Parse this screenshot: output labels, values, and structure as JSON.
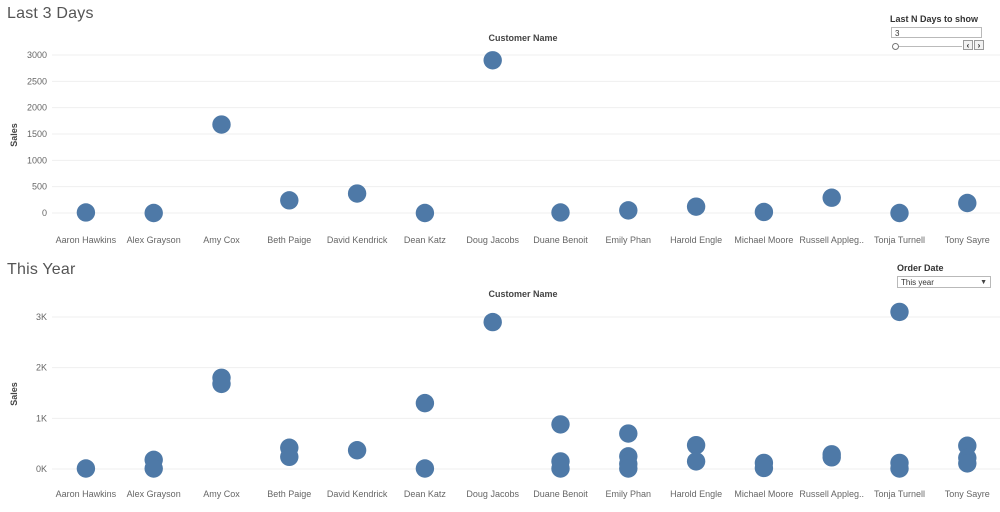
{
  "colors": {
    "mark": "#4e79a7",
    "gridline": "#efefef",
    "axis_text": "#666666"
  },
  "sheet_top": {
    "title": "Last 3 Days",
    "column_header": "Customer Name",
    "filter": {
      "title": "Last N Days to show",
      "value": "3",
      "prev_icon": "chevron-left-icon",
      "next_icon": "chevron-right-icon"
    }
  },
  "sheet_bottom": {
    "title": "This Year",
    "column_header": "Customer Name",
    "filter": {
      "title": "Order Date",
      "selected": "This year",
      "icon": "dropdown-arrow-icon"
    }
  },
  "chart_data": [
    {
      "type": "scatter",
      "title": "Last 3 Days",
      "xlabel": "Customer Name",
      "ylabel": "Sales",
      "ylim": [
        0,
        3000
      ],
      "y_ticks": [
        "3000",
        "2500",
        "2000",
        "1500",
        "1000",
        "500",
        "0"
      ],
      "y_tick_values": [
        3000,
        2500,
        2000,
        1500,
        1000,
        500,
        0
      ],
      "grid": true,
      "categories": [
        "Aaron Hawkins",
        "Alex Grayson",
        "Amy Cox",
        "Beth Paige",
        "David Kendrick",
        "Dean Katz",
        "Doug Jacobs",
        "Duane Benoit",
        "Emily Phan",
        "Harold Engle",
        "Michael Moore",
        "Russell Appleg..",
        "Tonja Turnell",
        "Tony Sayre"
      ],
      "points": [
        {
          "x": "Aaron Hawkins",
          "y": 10
        },
        {
          "x": "Alex Grayson",
          "y": 0
        },
        {
          "x": "Amy Cox",
          "y": 1680
        },
        {
          "x": "Beth Paige",
          "y": 240
        },
        {
          "x": "David Kendrick",
          "y": 370
        },
        {
          "x": "Dean Katz",
          "y": 0
        },
        {
          "x": "Doug Jacobs",
          "y": 2900
        },
        {
          "x": "Duane Benoit",
          "y": 10
        },
        {
          "x": "Emily Phan",
          "y": 50
        },
        {
          "x": "Harold Engle",
          "y": 120
        },
        {
          "x": "Michael Moore",
          "y": 20
        },
        {
          "x": "Russell Appleg..",
          "y": 290
        },
        {
          "x": "Tonja Turnell",
          "y": 0
        },
        {
          "x": "Tony Sayre",
          "y": 190
        }
      ]
    },
    {
      "type": "scatter",
      "title": "This Year",
      "xlabel": "Customer Name",
      "ylabel": "Sales",
      "ylim": [
        -300,
        3300
      ],
      "y_ticks": [
        "3K",
        "2K",
        "1K",
        "0K"
      ],
      "y_tick_values": [
        3000,
        2000,
        1000,
        0
      ],
      "grid": true,
      "categories": [
        "Aaron Hawkins",
        "Alex Grayson",
        "Amy Cox",
        "Beth Paige",
        "David Kendrick",
        "Dean Katz",
        "Doug Jacobs",
        "Duane Benoit",
        "Emily Phan",
        "Harold Engle",
        "Michael Moore",
        "Russell Appleg..",
        "Tonja Turnell",
        "Tony Sayre"
      ],
      "points": [
        {
          "x": "Aaron Hawkins",
          "y": 10
        },
        {
          "x": "Alex Grayson",
          "y": 180
        },
        {
          "x": "Alex Grayson",
          "y": 10
        },
        {
          "x": "Amy Cox",
          "y": 1800
        },
        {
          "x": "Amy Cox",
          "y": 1680
        },
        {
          "x": "Beth Paige",
          "y": 420
        },
        {
          "x": "Beth Paige",
          "y": 240
        },
        {
          "x": "David Kendrick",
          "y": 370
        },
        {
          "x": "Dean Katz",
          "y": 1300
        },
        {
          "x": "Dean Katz",
          "y": 10
        },
        {
          "x": "Doug Jacobs",
          "y": 2900
        },
        {
          "x": "Duane Benoit",
          "y": 880
        },
        {
          "x": "Duane Benoit",
          "y": 150
        },
        {
          "x": "Duane Benoit",
          "y": 10
        },
        {
          "x": "Emily Phan",
          "y": 700
        },
        {
          "x": "Emily Phan",
          "y": 250
        },
        {
          "x": "Emily Phan",
          "y": 100
        },
        {
          "x": "Emily Phan",
          "y": 10
        },
        {
          "x": "Harold Engle",
          "y": 470
        },
        {
          "x": "Harold Engle",
          "y": 150
        },
        {
          "x": "Michael Moore",
          "y": 120
        },
        {
          "x": "Michael Moore",
          "y": 20
        },
        {
          "x": "Russell Appleg..",
          "y": 290
        },
        {
          "x": "Russell Appleg..",
          "y": 230
        },
        {
          "x": "Tonja Turnell",
          "y": 3100
        },
        {
          "x": "Tonja Turnell",
          "y": 120
        },
        {
          "x": "Tonja Turnell",
          "y": 10
        },
        {
          "x": "Tony Sayre",
          "y": 460
        },
        {
          "x": "Tony Sayre",
          "y": 220
        },
        {
          "x": "Tony Sayre",
          "y": 110
        }
      ]
    }
  ]
}
